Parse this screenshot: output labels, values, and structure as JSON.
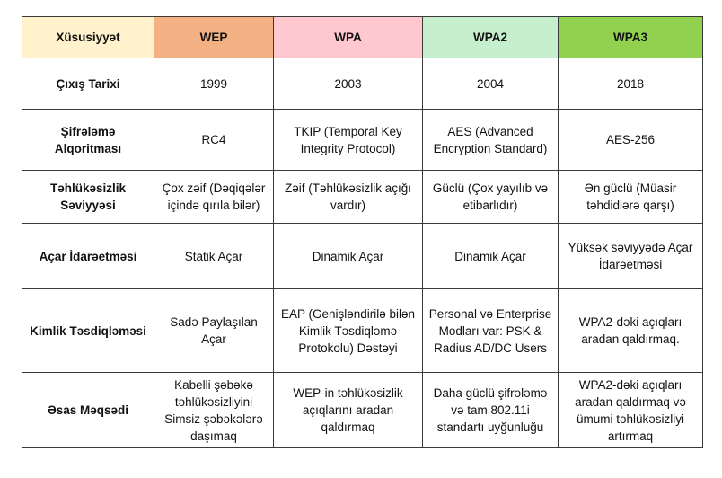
{
  "headers": {
    "feature": "Xüsusiyyət",
    "wep": "WEP",
    "wpa": "WPA",
    "wpa2": "WPA2",
    "wpa3": "WPA3"
  },
  "rows": [
    {
      "feature": "Çıxış Tarixi",
      "wep": "1999",
      "wpa": "2003",
      "wpa2": "2004",
      "wpa3": "2018"
    },
    {
      "feature": "Şifrələmə Alqoritması",
      "wep": "RC4",
      "wpa": "TKIP (Temporal Key Integrity Protocol)",
      "wpa2": "AES (Advanced Encryption Standard)",
      "wpa3": "AES-256"
    },
    {
      "feature": "Təhlükəsizlik Səviyyəsi",
      "wep": "Çox zəif (Dəqiqələr içində qırıla bilər)",
      "wpa": "Zəif (Təhlükəsizlik açığı vardır)",
      "wpa2": "Güclü (Çox yayılıb və etibarlıdır)",
      "wpa3": "Ən güclü (Müasir təhdidlərə qarşı)"
    },
    {
      "feature": "Açar İdarəetməsi",
      "wep": "Statik Açar",
      "wpa": "Dinamik Açar",
      "wpa2": "Dinamik Açar",
      "wpa3": "Yüksək səviyyədə Açar İdarəetməsi"
    },
    {
      "feature": "Kimlik Təsdiqləməsi",
      "wep": "Sadə Paylaşılan Açar",
      "wpa": "EAP (Genişləndirilə bilən Kimlik Təsdiqləmə Protokolu) Dəstəyi",
      "wpa2": "Personal və Enterprise Modları var: PSK & Radius AD/DC Users",
      "wpa3": "WPA2-dəki açıqları aradan qaldırmaq."
    },
    {
      "feature": "Əsas Məqsədi",
      "wep": "Kabelli şəbəkə təhlükəsizliyini Simsiz şəbəkələrə daşımaq",
      "wpa": "WEP-in təhlükəsizlik açıqlarını aradan qaldırmaq",
      "wpa2": "Daha güclü şifrələmə və tam 802.11i standartı uyğunluğu",
      "wpa3": "WPA2-dəki açıqları aradan qaldırmaq və ümumi təhlükəsizliyi artırmaq"
    }
  ]
}
